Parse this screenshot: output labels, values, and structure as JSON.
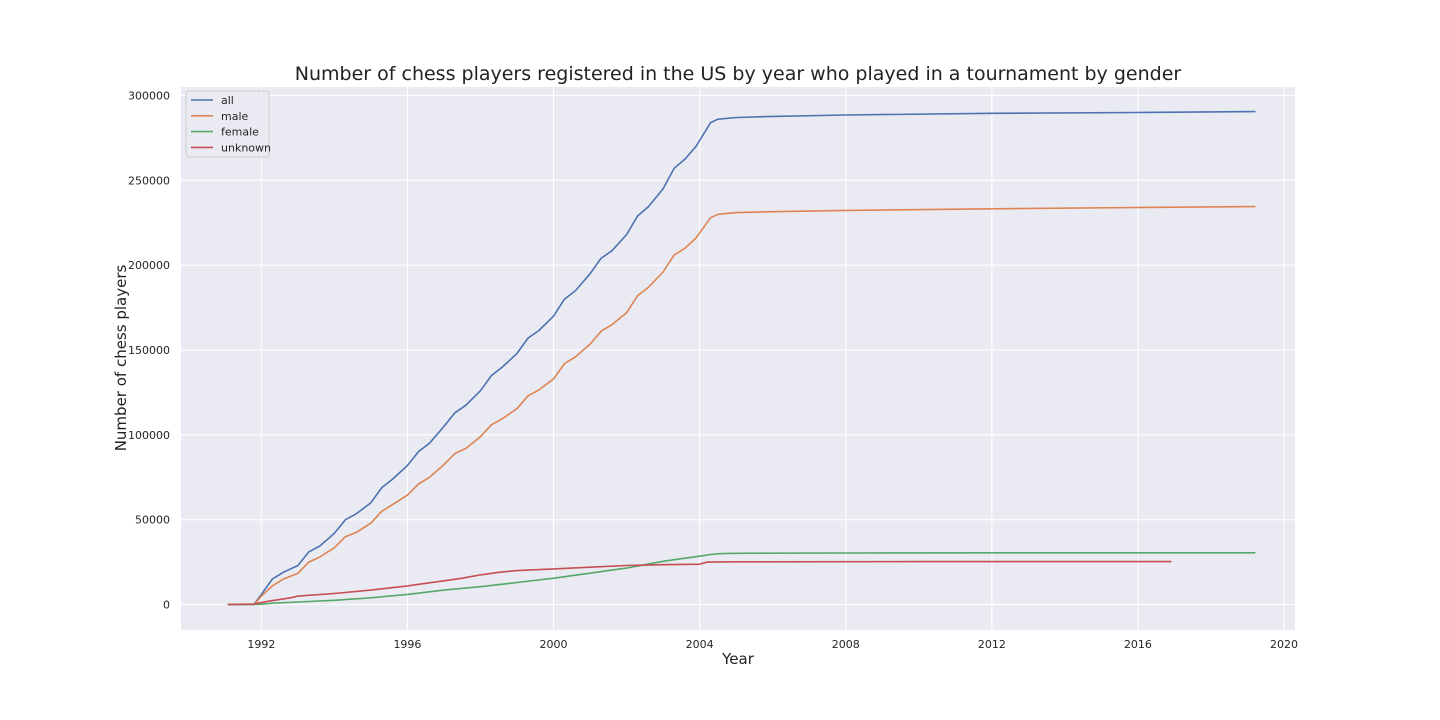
{
  "chart_data": {
    "type": "line",
    "title": "Number of chess players registered in the US by year who played in a tournament by gender",
    "xlabel": "Year",
    "ylabel": "Number of chess players",
    "xlim": [
      1989.8,
      2020.3
    ],
    "ylim": [
      -15000,
      305000
    ],
    "x_ticks": [
      1992,
      1996,
      2000,
      2004,
      2008,
      2012,
      2016,
      2020
    ],
    "y_ticks": [
      0,
      50000,
      100000,
      150000,
      200000,
      250000,
      300000
    ],
    "grid": true,
    "legend_position": "top-left",
    "series": [
      {
        "name": "all",
        "color": "#4c72b0",
        "points": [
          [
            1991.1,
            0
          ],
          [
            1991.8,
            0
          ],
          [
            1992.0,
            6000
          ],
          [
            1992.3,
            15000
          ],
          [
            1992.6,
            19000
          ],
          [
            1993.0,
            23000
          ],
          [
            1993.3,
            31000
          ],
          [
            1993.6,
            34500
          ],
          [
            1994.0,
            42000
          ],
          [
            1994.3,
            50000
          ],
          [
            1994.6,
            53500
          ],
          [
            1995.0,
            60000
          ],
          [
            1995.3,
            69000
          ],
          [
            1995.6,
            74000
          ],
          [
            1996.0,
            82000
          ],
          [
            1996.3,
            90000
          ],
          [
            1996.6,
            95000
          ],
          [
            1997.0,
            105000
          ],
          [
            1997.3,
            113000
          ],
          [
            1997.6,
            117500
          ],
          [
            1998.0,
            126000
          ],
          [
            1998.3,
            135000
          ],
          [
            1998.6,
            140000
          ],
          [
            1999.0,
            148000
          ],
          [
            1999.3,
            157000
          ],
          [
            1999.6,
            161500
          ],
          [
            2000.0,
            170000
          ],
          [
            2000.3,
            180000
          ],
          [
            2000.6,
            185000
          ],
          [
            2001.0,
            195000
          ],
          [
            2001.3,
            204000
          ],
          [
            2001.6,
            208500
          ],
          [
            2002.0,
            218000
          ],
          [
            2002.3,
            229000
          ],
          [
            2002.6,
            234500
          ],
          [
            2003.0,
            245000
          ],
          [
            2003.3,
            257000
          ],
          [
            2003.6,
            262500
          ],
          [
            2003.9,
            270000
          ],
          [
            2004.1,
            277000
          ],
          [
            2004.3,
            284000
          ],
          [
            2004.5,
            286000
          ],
          [
            2005.0,
            287000
          ],
          [
            2006.0,
            287700
          ],
          [
            2008.0,
            288500
          ],
          [
            2012.0,
            289500
          ],
          [
            2016.0,
            290000
          ],
          [
            2019.2,
            290500
          ]
        ]
      },
      {
        "name": "male",
        "color": "#dd8452",
        "points": [
          [
            1991.1,
            0
          ],
          [
            1991.8,
            0
          ],
          [
            1992.0,
            5000
          ],
          [
            1992.3,
            11000
          ],
          [
            1992.6,
            15000
          ],
          [
            1993.0,
            18500
          ],
          [
            1993.3,
            25000
          ],
          [
            1993.6,
            28000
          ],
          [
            1994.0,
            33500
          ],
          [
            1994.3,
            40000
          ],
          [
            1994.6,
            42500
          ],
          [
            1995.0,
            48000
          ],
          [
            1995.3,
            55000
          ],
          [
            1995.6,
            59000
          ],
          [
            1996.0,
            64500
          ],
          [
            1996.3,
            71000
          ],
          [
            1996.6,
            75000
          ],
          [
            1997.0,
            82500
          ],
          [
            1997.3,
            89000
          ],
          [
            1997.6,
            92000
          ],
          [
            1998.0,
            99000
          ],
          [
            1998.3,
            106000
          ],
          [
            1998.6,
            109500
          ],
          [
            1999.0,
            115500
          ],
          [
            1999.3,
            123000
          ],
          [
            1999.6,
            126500
          ],
          [
            2000.0,
            133000
          ],
          [
            2000.3,
            142000
          ],
          [
            2000.6,
            146000
          ],
          [
            2001.0,
            153500
          ],
          [
            2001.3,
            161000
          ],
          [
            2001.6,
            165000
          ],
          [
            2002.0,
            172000
          ],
          [
            2002.3,
            182000
          ],
          [
            2002.6,
            187000
          ],
          [
            2003.0,
            196000
          ],
          [
            2003.3,
            206000
          ],
          [
            2003.6,
            210000
          ],
          [
            2003.9,
            216000
          ],
          [
            2004.1,
            222000
          ],
          [
            2004.3,
            228000
          ],
          [
            2004.5,
            230000
          ],
          [
            2005.0,
            231000
          ],
          [
            2006.0,
            231500
          ],
          [
            2008.0,
            232300
          ],
          [
            2012.0,
            233200
          ],
          [
            2016.0,
            234000
          ],
          [
            2019.2,
            234500
          ]
        ]
      },
      {
        "name": "female",
        "color": "#55a868",
        "points": [
          [
            1991.1,
            0
          ],
          [
            1992.0,
            200
          ],
          [
            1992.3,
            800
          ],
          [
            1993.0,
            1500
          ],
          [
            1994.0,
            2500
          ],
          [
            1995.0,
            4000
          ],
          [
            1996.0,
            6000
          ],
          [
            1997.0,
            8500
          ],
          [
            1998.0,
            10500
          ],
          [
            1999.0,
            13000
          ],
          [
            2000.0,
            15500
          ],
          [
            2000.5,
            17000
          ],
          [
            2001.0,
            18500
          ],
          [
            2001.5,
            20000
          ],
          [
            2002.0,
            21500
          ],
          [
            2002.5,
            23500
          ],
          [
            2003.0,
            25500
          ],
          [
            2003.5,
            27000
          ],
          [
            2004.0,
            28500
          ],
          [
            2004.3,
            29500
          ],
          [
            2004.6,
            30000
          ],
          [
            2005.0,
            30200
          ],
          [
            2008.0,
            30400
          ],
          [
            2012.0,
            30500
          ],
          [
            2016.0,
            30500
          ],
          [
            2019.2,
            30500
          ]
        ]
      },
      {
        "name": "unknown",
        "color": "#c44e52",
        "points": [
          [
            1991.1,
            0
          ],
          [
            1991.8,
            300
          ],
          [
            1992.2,
            2000
          ],
          [
            1992.8,
            4000
          ],
          [
            1993.0,
            5000
          ],
          [
            1994.0,
            6500
          ],
          [
            1995.0,
            8500
          ],
          [
            1996.0,
            11000
          ],
          [
            1996.5,
            12500
          ],
          [
            1997.0,
            14000
          ],
          [
            1997.5,
            15500
          ],
          [
            1998.0,
            17500
          ],
          [
            1998.5,
            19000
          ],
          [
            1999.0,
            20000
          ],
          [
            2000.0,
            21000
          ],
          [
            2001.0,
            22000
          ],
          [
            2002.0,
            23000
          ],
          [
            2003.0,
            23500
          ],
          [
            2004.0,
            23800
          ],
          [
            2004.2,
            25000
          ],
          [
            2005.0,
            25200
          ],
          [
            2010.0,
            25300
          ],
          [
            2016.9,
            25300
          ]
        ]
      }
    ]
  }
}
